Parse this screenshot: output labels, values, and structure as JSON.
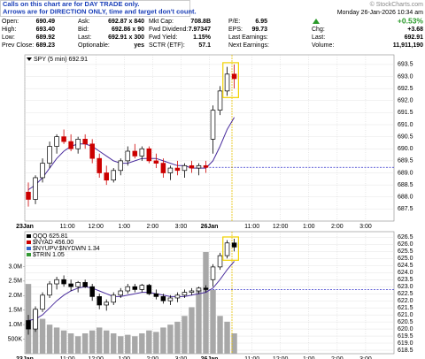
{
  "header": {
    "note_lines": [
      "Calls on this chart are for DAY TRADE only.",
      "Arrows are for DIRECTION ONLY, time and target don't count."
    ],
    "copyright": "© StockCharts.com"
  },
  "quote": {
    "rows": [
      [
        [
          "Open:",
          "690.49"
        ],
        [
          "Ask:",
          "692.87 x 840"
        ],
        [
          "Mkt Cap:",
          "708.8B"
        ],
        [
          "P/E:",
          "6.95"
        ]
      ],
      [
        [
          "High:",
          "693.40"
        ],
        [
          "Bid:",
          "692.86 x 90"
        ],
        [
          "Fwd Dividend:",
          "7.97347"
        ],
        [
          "EPS:",
          "99.73"
        ]
      ],
      [
        [
          "Low:",
          "689.92"
        ],
        [
          "Last:",
          "692.91 x 300"
        ],
        [
          "Fwd Yield:",
          "1.15%"
        ],
        [
          "Last Earnings:"
        ]
      ],
      [
        [
          "Prev Close:",
          "689.23"
        ],
        [
          "Optionable:",
          "yes"
        ],
        [
          "SCTR (ETF):",
          "57.1"
        ],
        [
          "Next Earnings:"
        ]
      ]
    ],
    "status": {
      "date": "Monday 26-Jan-2026 10:34 am",
      "change_pct": "+0.53%",
      "rows": [
        [
          "Chg:",
          "+3.68"
        ],
        [
          "Last:",
          "692.91"
        ],
        [
          "Volume:",
          "11,911,190"
        ]
      ]
    }
  },
  "chart_data": [
    {
      "type": "candlestick",
      "label": "SPY (5 min) 692.91",
      "up_color": "#000000",
      "down_color": "#cc0000",
      "xlim": [
        0,
        13
      ],
      "xticks": [
        {
          "value": 0,
          "label": "23Jan"
        },
        {
          "value": 1.5,
          "label": "11:00"
        },
        {
          "value": 2.5,
          "label": "12:00"
        },
        {
          "value": 3.5,
          "label": "1:00"
        },
        {
          "value": 4.5,
          "label": "2:00"
        },
        {
          "value": 5.5,
          "label": "3:00"
        },
        {
          "value": 6.5,
          "label": "26Jan"
        },
        {
          "value": 8,
          "label": "11:00"
        },
        {
          "value": 9,
          "label": "12:00"
        },
        {
          "value": 10,
          "label": "1:00"
        },
        {
          "value": 11,
          "label": "2:00"
        },
        {
          "value": 12,
          "label": "3:00"
        }
      ],
      "ylim": [
        687.0,
        693.9
      ],
      "yticks": [
        687.5,
        {
          "value": 688,
          "label": "688.0"
        },
        688.5,
        {
          "value": 689,
          "label": "689.0"
        },
        689.5,
        {
          "value": 690,
          "label": "690.0"
        },
        690.5,
        {
          "value": 691,
          "label": "691.0"
        },
        691.5,
        {
          "value": 692,
          "label": "692.0"
        },
        692.5,
        {
          "value": 693,
          "label": "693.0"
        },
        693.5
      ],
      "grid": true,
      "x": [
        0.125,
        0.375,
        0.625,
        0.875,
        1.125,
        1.375,
        1.625,
        1.875,
        2.125,
        2.375,
        2.625,
        2.875,
        3.125,
        3.375,
        3.625,
        3.875,
        4.125,
        4.375,
        4.625,
        4.875,
        5.125,
        5.375,
        5.625,
        5.875,
        6.125,
        6.375,
        6.625,
        6.875,
        7.125,
        7.375
      ],
      "open": [
        688.2,
        687.9,
        688.8,
        689.4,
        690.1,
        690.5,
        690.3,
        690.0,
        690.4,
        690.2,
        689.6,
        689.0,
        688.7,
        689.1,
        689.5,
        689.9,
        689.7,
        690.0,
        689.5,
        689.4,
        689.0,
        689.2,
        689.1,
        689.3,
        689.2,
        689.3,
        690.4,
        691.6,
        692.4,
        693.1
      ],
      "high": [
        688.6,
        688.9,
        689.6,
        690.3,
        690.6,
        690.8,
        690.6,
        690.5,
        690.6,
        690.4,
        689.8,
        689.3,
        689.2,
        689.6,
        690.1,
        690.2,
        690.1,
        690.1,
        689.8,
        689.6,
        689.3,
        689.5,
        689.4,
        689.5,
        689.4,
        689.5,
        691.8,
        692.6,
        693.4,
        693.5
      ],
      "low": [
        687.6,
        687.7,
        688.6,
        689.2,
        689.8,
        690.2,
        689.9,
        689.8,
        690.0,
        689.4,
        688.8,
        688.5,
        688.6,
        688.9,
        689.3,
        689.6,
        689.5,
        689.4,
        689.2,
        688.8,
        688.7,
        688.9,
        688.8,
        689.0,
        688.9,
        689.0,
        689.8,
        691.4,
        692.2,
        692.5
      ],
      "close": [
        687.9,
        688.8,
        689.4,
        690.1,
        690.5,
        690.3,
        690.0,
        690.4,
        690.2,
        689.6,
        689.0,
        688.7,
        689.1,
        689.5,
        689.9,
        689.7,
        690.0,
        689.5,
        689.4,
        689.0,
        689.2,
        689.1,
        689.3,
        689.2,
        689.3,
        689.23,
        691.6,
        692.4,
        693.1,
        692.91
      ],
      "ma": {
        "color": "#4b2e9e",
        "values": [
          688.3,
          688.5,
          688.8,
          689.2,
          689.6,
          689.9,
          690.1,
          690.2,
          690.2,
          690.1,
          689.9,
          689.7,
          689.5,
          689.4,
          689.4,
          689.5,
          689.6,
          689.6,
          689.6,
          689.5,
          689.4,
          689.3,
          689.3,
          689.2,
          689.2,
          689.2,
          689.5,
          690.1,
          690.8,
          691.3
        ]
      },
      "hline": {
        "value": 689.23,
        "color": "#3333cc"
      }
    },
    {
      "type": "candlestick",
      "legend": [
        {
          "name": "QQQ 625.81",
          "color": "#000000"
        },
        {
          "name": "$NYAD 456.00",
          "color": "#cc0000"
        },
        {
          "name": "$NYUPV:$NYDWN 1.34",
          "color": "#3366cc"
        },
        {
          "name": "$TRIN 1.05",
          "color": "#339933"
        }
      ],
      "up_color": "#000000",
      "down_color": "#000000",
      "xlim": [
        0,
        13
      ],
      "xticks": [
        {
          "value": 0,
          "label": "23Jan"
        },
        {
          "value": 1.5,
          "label": "11:00"
        },
        {
          "value": 2.5,
          "label": "12:00"
        },
        {
          "value": 3.5,
          "label": "1:00"
        },
        {
          "value": 4.5,
          "label": "2:00"
        },
        {
          "value": 5.5,
          "label": "3:00"
        },
        {
          "value": 6.5,
          "label": "26Jan"
        },
        {
          "value": 8,
          "label": "11:00"
        },
        {
          "value": 9,
          "label": "12:00"
        },
        {
          "value": 10,
          "label": "1:00"
        },
        {
          "value": 11,
          "label": "2:00"
        },
        {
          "value": 12,
          "label": "3:00"
        }
      ],
      "ylim": [
        618.25,
        626.9
      ],
      "yticks": [
        618.5,
        {
          "value": 619,
          "label": "619.0"
        },
        619.5,
        {
          "value": 620,
          "label": "620.0"
        },
        620.5,
        {
          "value": 621,
          "label": "621.0"
        },
        621.5,
        {
          "value": 622,
          "label": "622.0"
        },
        622.5,
        {
          "value": 623,
          "label": "623.0"
        },
        623.5,
        {
          "value": 624,
          "label": "624.0"
        },
        624.5,
        {
          "value": 625,
          "label": "625.0"
        },
        625.5,
        {
          "value": 626,
          "label": "626.0"
        },
        626.5
      ],
      "y2lim": [
        0,
        4200000
      ],
      "y2ticks": [
        {
          "value": 500000,
          "label": "500K"
        },
        {
          "value": 1000000,
          "label": "1.0M"
        },
        {
          "value": 1500000,
          "label": "1.5M"
        },
        {
          "value": 2000000,
          "label": "2.0M"
        },
        {
          "value": 2500000,
          "label": "2.5M"
        },
        {
          "value": 3000000,
          "label": "3.0M"
        }
      ],
      "grid": true,
      "x": [
        0.125,
        0.375,
        0.625,
        0.875,
        1.125,
        1.375,
        1.625,
        1.875,
        2.125,
        2.375,
        2.625,
        2.875,
        3.125,
        3.375,
        3.625,
        3.875,
        4.125,
        4.375,
        4.625,
        4.875,
        5.125,
        5.375,
        5.625,
        5.875,
        6.125,
        6.375,
        6.625,
        6.875,
        7.125,
        7.375
      ],
      "open": [
        620.6,
        620.0,
        621.4,
        622.4,
        623.2,
        623.5,
        623.2,
        623.0,
        623.3,
        623.0,
        622.3,
        621.7,
        621.9,
        622.4,
        622.7,
        623.0,
        622.8,
        623.1,
        622.5,
        622.3,
        622.0,
        622.2,
        622.4,
        622.6,
        622.7,
        622.9,
        623.5,
        624.4,
        625.2,
        626.1
      ],
      "high": [
        621.0,
        621.6,
        622.6,
        623.4,
        623.7,
        623.8,
        623.5,
        623.4,
        623.5,
        623.2,
        622.5,
        622.1,
        622.6,
        622.9,
        623.2,
        623.2,
        623.2,
        623.2,
        622.8,
        622.5,
        622.4,
        622.6,
        622.8,
        622.9,
        623.0,
        623.1,
        624.6,
        625.4,
        626.3,
        626.4
      ],
      "low": [
        619.6,
        619.8,
        621.2,
        622.2,
        622.8,
        623.0,
        622.7,
        622.6,
        622.9,
        622.0,
        621.4,
        621.3,
        621.7,
        622.2,
        622.5,
        622.6,
        622.6,
        622.4,
        622.1,
        621.8,
        621.7,
        621.9,
        622.2,
        622.4,
        622.5,
        622.6,
        623.0,
        624.2,
        625.0,
        625.5
      ],
      "close": [
        620.0,
        621.4,
        622.4,
        623.2,
        623.5,
        623.2,
        623.0,
        623.3,
        623.0,
        622.3,
        621.7,
        621.9,
        622.4,
        622.7,
        623.0,
        622.8,
        623.1,
        622.5,
        622.3,
        622.0,
        622.2,
        622.4,
        622.6,
        622.7,
        622.9,
        622.8,
        624.4,
        625.2,
        626.1,
        625.81
      ],
      "ma": {
        "color": "#4b2e9e",
        "values": [
          620.6,
          620.7,
          621.0,
          621.5,
          622.0,
          622.4,
          622.7,
          622.9,
          623.0,
          622.9,
          622.7,
          622.5,
          622.3,
          622.3,
          622.4,
          622.5,
          622.6,
          622.6,
          622.5,
          622.4,
          622.3,
          622.3,
          622.3,
          622.4,
          622.5,
          622.6,
          622.9,
          623.5,
          624.2,
          624.8
        ]
      },
      "volume": {
        "color": "#a8a8a8",
        "values": [
          2400000,
          1500000,
          1200000,
          1000000,
          900000,
          800000,
          700000,
          600000,
          700000,
          800000,
          900000,
          800000,
          700000,
          600000,
          650000,
          600000,
          700000,
          800000,
          750000,
          900000,
          1000000,
          1100000,
          1300000,
          1600000,
          2200000,
          3500000,
          2200000,
          1300000,
          1100000,
          700000
        ]
      },
      "hline": {
        "value": 622.8,
        "color": "#3333cc"
      }
    }
  ]
}
